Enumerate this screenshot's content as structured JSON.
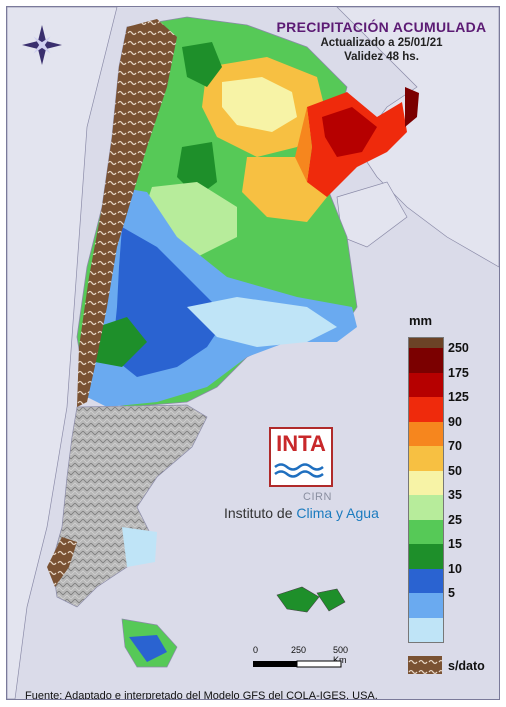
{
  "header": {
    "title": "PRECIPITACIÓN ACUMULADA",
    "updated": "Actualizado a 25/01/21",
    "validity": "Validez 48 hs."
  },
  "legend": {
    "unit": "mm",
    "classes": [
      {
        "label": "250",
        "color": "#7b0000"
      },
      {
        "label": "175",
        "color": "#b60000"
      },
      {
        "label": "125",
        "color": "#ef2a0c"
      },
      {
        "label": "90",
        "color": "#f6861e"
      },
      {
        "label": "70",
        "color": "#f7c042"
      },
      {
        "label": "50",
        "color": "#f7f3a6"
      },
      {
        "label": "35",
        "color": "#b7ec9b"
      },
      {
        "label": "25",
        "color": "#56c957"
      },
      {
        "label": "15",
        "color": "#1e8f2a"
      },
      {
        "label": "10",
        "color": "#2a63d1"
      },
      {
        "label": "5",
        "color": "#6aaaf0"
      },
      {
        "label": "",
        "color": "#bfe4f7"
      }
    ],
    "top_color": "#6b4226",
    "no_data_label": "s/dato",
    "no_data_color": "#7a5233"
  },
  "scale_bar": {
    "labels": [
      "0",
      "250",
      "500 Km"
    ]
  },
  "logo": {
    "brand": "INTA",
    "org_small": "CIRN",
    "institute_prefix": "Instituto de ",
    "institute_highlight": "Clima y Agua"
  },
  "footer": {
    "source": "Fuente: Adaptado e interpretado del Modelo GFS del COLA-IGES, USA."
  },
  "icons": {
    "compass": "compass-rose-icon"
  }
}
